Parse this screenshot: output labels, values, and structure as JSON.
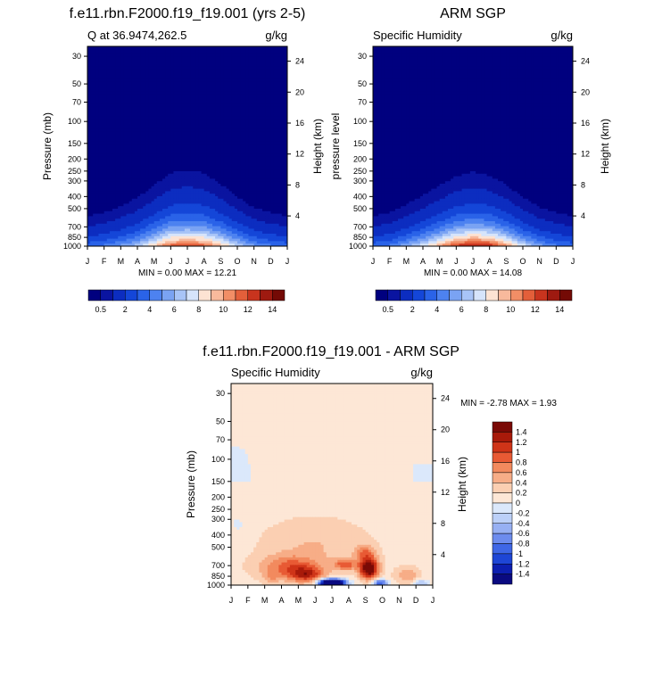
{
  "chart_data": [
    {
      "type": "heatmap",
      "id": "model",
      "title": "f.e11.rbn.F2000.f19_f19.001 (yrs 2-5)",
      "subtitle_left": "Q at 36.9474,262.5",
      "subtitle_right": "g/kg",
      "ylabel": "Pressure (mb)",
      "ylabel_right": "Height (km)",
      "x_ticks": [
        "J",
        "F",
        "M",
        "A",
        "M",
        "J",
        "J",
        "A",
        "S",
        "O",
        "N",
        "D",
        "J"
      ],
      "y_ticks": [
        30,
        50,
        70,
        100,
        150,
        200,
        250,
        300,
        400,
        500,
        700,
        850,
        1000
      ],
      "height_ticks": [
        24,
        20,
        16,
        12,
        8,
        4
      ],
      "ylim": [
        25,
        1000
      ],
      "min_max_text": "MIN =   0.00 MAX =  12.21",
      "colorbar_labels": [
        "0.5",
        "2",
        "4",
        "6",
        "8",
        "10",
        "12",
        "14"
      ],
      "color_levels": [
        0.5,
        1,
        2,
        3,
        4,
        5,
        6,
        7,
        8,
        9,
        10,
        11,
        12,
        13,
        14
      ],
      "q_profile": {
        "months": [
          0,
          1,
          2,
          3,
          4,
          5,
          6,
          7,
          8,
          9,
          10,
          11,
          12
        ],
        "surface": [
          4.0,
          4.5,
          5.5,
          7.0,
          9.5,
          12.0,
          12.2,
          12.0,
          10.0,
          7.5,
          5.5,
          4.5,
          4.0
        ],
        "scale_height_km": [
          1.9,
          2.0,
          2.2,
          2.4,
          2.7,
          3.0,
          3.1,
          3.0,
          2.7,
          2.4,
          2.1,
          2.0,
          1.9
        ]
      }
    },
    {
      "type": "heatmap",
      "id": "obs",
      "title": "ARM SGP",
      "subtitle_left": "Specific Humidity",
      "subtitle_right": "g/kg",
      "ylabel": "pressure level",
      "ylabel_right": "Height (km)",
      "x_ticks": [
        "J",
        "F",
        "M",
        "A",
        "M",
        "J",
        "J",
        "A",
        "S",
        "O",
        "N",
        "D",
        "J"
      ],
      "y_ticks": [
        30,
        50,
        70,
        100,
        150,
        200,
        250,
        300,
        400,
        500,
        700,
        850,
        1000
      ],
      "height_ticks": [
        24,
        20,
        16,
        12,
        8,
        4
      ],
      "ylim": [
        25,
        1000
      ],
      "min_max_text": "MIN =   0.00 MAX =  14.08",
      "colorbar_labels": [
        "0.5",
        "2",
        "4",
        "6",
        "8",
        "10",
        "12",
        "14"
      ],
      "color_levels": [
        0.5,
        1,
        2,
        3,
        4,
        5,
        6,
        7,
        8,
        9,
        10,
        11,
        12,
        13,
        14
      ],
      "q_profile": {
        "months": [
          0,
          1,
          2,
          3,
          4,
          5,
          6,
          7,
          8,
          9,
          10,
          11,
          12
        ],
        "surface": [
          4.0,
          4.5,
          6.0,
          8.0,
          10.5,
          13.0,
          14.0,
          13.5,
          11.0,
          8.0,
          5.8,
          4.5,
          4.0
        ],
        "scale_height_km": [
          1.9,
          2.0,
          2.2,
          2.4,
          2.6,
          2.8,
          2.9,
          2.8,
          2.6,
          2.3,
          2.1,
          2.0,
          1.9
        ]
      }
    },
    {
      "type": "heatmap",
      "id": "diff",
      "title": "f.e11.rbn.F2000.f19_f19.001 - ARM SGP",
      "subtitle_left": "Specific Humidity",
      "subtitle_right": "g/kg",
      "ylabel": "Pressure (mb)",
      "ylabel_right": "Height (km)",
      "x_ticks": [
        "J",
        "F",
        "M",
        "A",
        "M",
        "J",
        "J",
        "A",
        "S",
        "O",
        "N",
        "D",
        "J"
      ],
      "y_ticks": [
        30,
        50,
        70,
        100,
        150,
        200,
        250,
        300,
        400,
        500,
        700,
        850,
        1000
      ],
      "height_ticks": [
        24,
        20,
        16,
        12,
        8,
        4
      ],
      "ylim": [
        25,
        1000
      ],
      "min_max_text": "MIN =  -2.78 MAX =   1.93",
      "colorbar_labels": [
        "1.4",
        "1.2",
        "1",
        "0.8",
        "0.6",
        "0.4",
        "0.2",
        "0",
        "-0.2",
        "-0.4",
        "-0.6",
        "-0.8",
        "-1",
        "-1.2",
        "-1.4"
      ],
      "color_levels": [
        -1.4,
        -1.2,
        -1.0,
        -0.8,
        -0.6,
        -0.4,
        -0.2,
        0,
        0.2,
        0.4,
        0.6,
        0.8,
        1.0,
        1.2,
        1.4
      ]
    }
  ],
  "colors": {
    "q_scale": [
      "#00007f",
      "#0a14a0",
      "#0c2dc0",
      "#1446d8",
      "#2a63e8",
      "#4d82f0",
      "#7aa3f3",
      "#a8c4f7",
      "#d6e4fb",
      "#fde3d3",
      "#f8b99c",
      "#f28e66",
      "#e35f3a",
      "#c8341e",
      "#9e1a10",
      "#740a05"
    ],
    "diff_scale": [
      "#0a0a80",
      "#0d1fb0",
      "#1e46d6",
      "#3f67e6",
      "#6d8cee",
      "#97b0f3",
      "#bcd0f8",
      "#dbe8fb",
      "#fde7d6",
      "#fbcfb2",
      "#f7ad87",
      "#f28a5e",
      "#e85a34",
      "#cf3418",
      "#a81a0a",
      "#7a0a06"
    ]
  }
}
